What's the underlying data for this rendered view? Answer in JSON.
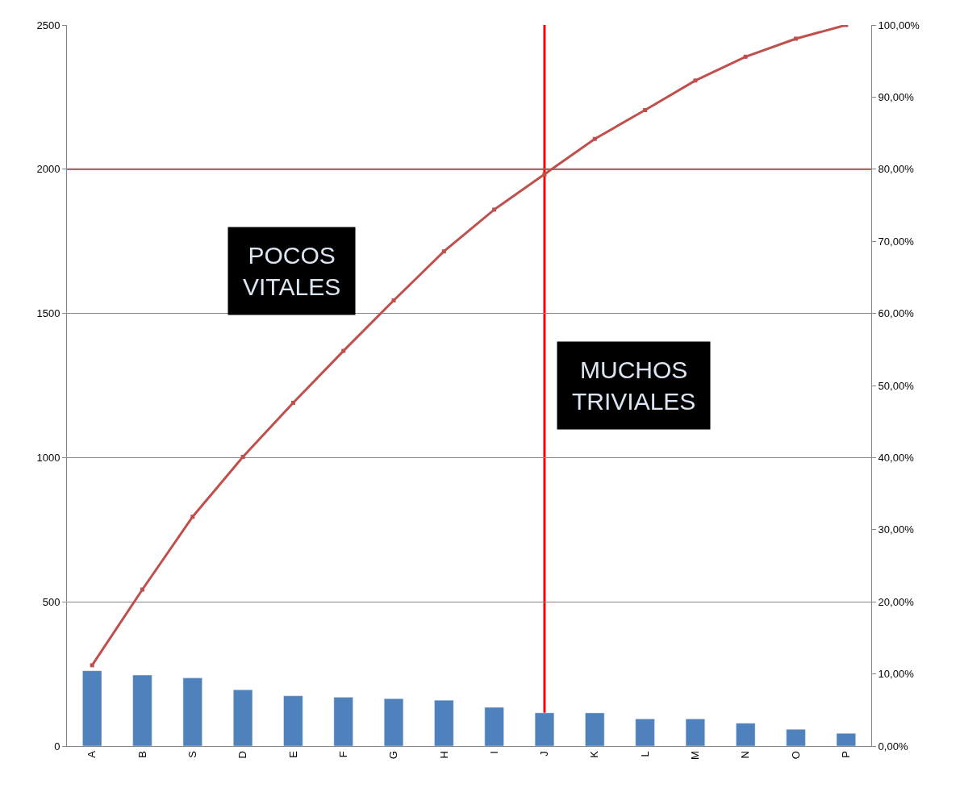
{
  "chart_data": {
    "type": "bar",
    "categories": [
      "A",
      "B",
      "S",
      "D",
      "E",
      "F",
      "G",
      "H",
      "I",
      "J",
      "K",
      "L",
      "M",
      "N",
      "O",
      "P"
    ],
    "series": [
      {
        "color": "#4f81bd",
        "values": [
          261,
          246,
          236,
          195,
          174,
          169,
          164,
          159,
          134,
          115,
          115,
          94,
          94,
          79,
          58,
          44
        ]
      },
      {
        "type": "line",
        "axis": "y2",
        "color": "#c0504d",
        "marker": "square",
        "values": [
          11.2,
          21.7,
          31.8,
          40.1,
          47.6,
          54.8,
          61.8,
          68.6,
          74.4,
          79.3,
          84.2,
          88.2,
          92.3,
          95.6,
          98.1,
          100
        ]
      }
    ],
    "ylim": [
      0,
      2500
    ],
    "yticks": [
      0,
      500,
      1000,
      1500,
      2000,
      2500
    ],
    "y2lim": [
      0,
      100
    ],
    "y2ticks": [
      {
        "value": 0,
        "label": "0,00%"
      },
      {
        "value": 10,
        "label": "10,00%"
      },
      {
        "value": 20,
        "label": "20,00%"
      },
      {
        "value": 30,
        "label": "30,00%"
      },
      {
        "value": 40,
        "label": "40,00%"
      },
      {
        "value": 50,
        "label": "50,00%"
      },
      {
        "value": 60,
        "label": "60,00%"
      },
      {
        "value": 70,
        "label": "70,00%"
      },
      {
        "value": 80,
        "label": "80,00%"
      },
      {
        "value": 90,
        "label": "90,00%"
      },
      {
        "value": 100,
        "label": "100,00%"
      }
    ],
    "ref_lines": [
      {
        "axis": "x",
        "value": "J",
        "color": "#ff0000"
      },
      {
        "axis": "y2",
        "value": 80,
        "color": "#ff0000"
      }
    ],
    "annotations": [
      "POCOS\nVITALES",
      "MUCHOS\nTRIVIALES"
    ],
    "grid": "y"
  }
}
